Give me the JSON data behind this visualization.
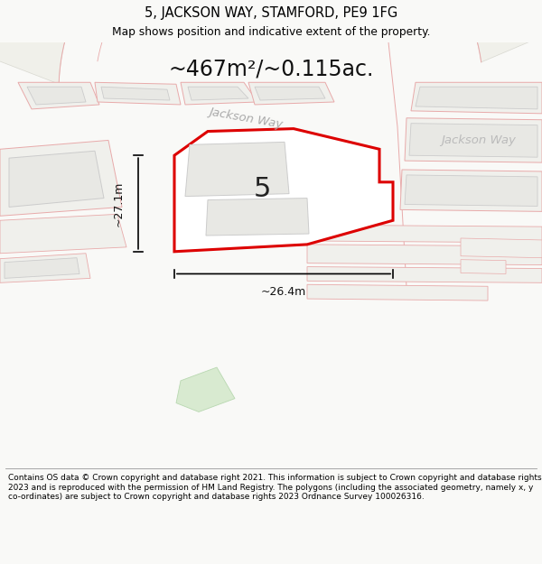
{
  "title": "5, JACKSON WAY, STAMFORD, PE9 1FG",
  "subtitle": "Map shows position and indicative extent of the property.",
  "area_text": "~467m²/~0.115ac.",
  "width_label": "~26.4m",
  "height_label": "~27.1m",
  "property_number": "5",
  "street_name_diag": "Jackson Way",
  "street_name_horiz": "Jackson Way",
  "footer_text": "Contains OS data © Crown copyright and database right 2021. This information is subject to Crown copyright and database rights 2023 and is reproduced with the permission of HM Land Registry. The polygons (including the associated geometry, namely x, y co-ordinates) are subject to Crown copyright and database rights 2023 Ordnance Survey 100026316.",
  "bg_color": "#f9f9f7",
  "map_bg": "#f9f9f7",
  "property_fill": "#ffffff",
  "property_edge_color": "#dd0000",
  "building_fill": "#e8e8e4",
  "building_edge": "#cccccc",
  "parcel_fill": "#f0f0ec",
  "parcel_edge": "#e8aaaa",
  "road_fill": "#f0f0ea",
  "road_edge": "#d8d8d0",
  "green_fill": "#d8ead0",
  "green_edge": "#b8d8b0",
  "footer_line_color": "#999999"
}
